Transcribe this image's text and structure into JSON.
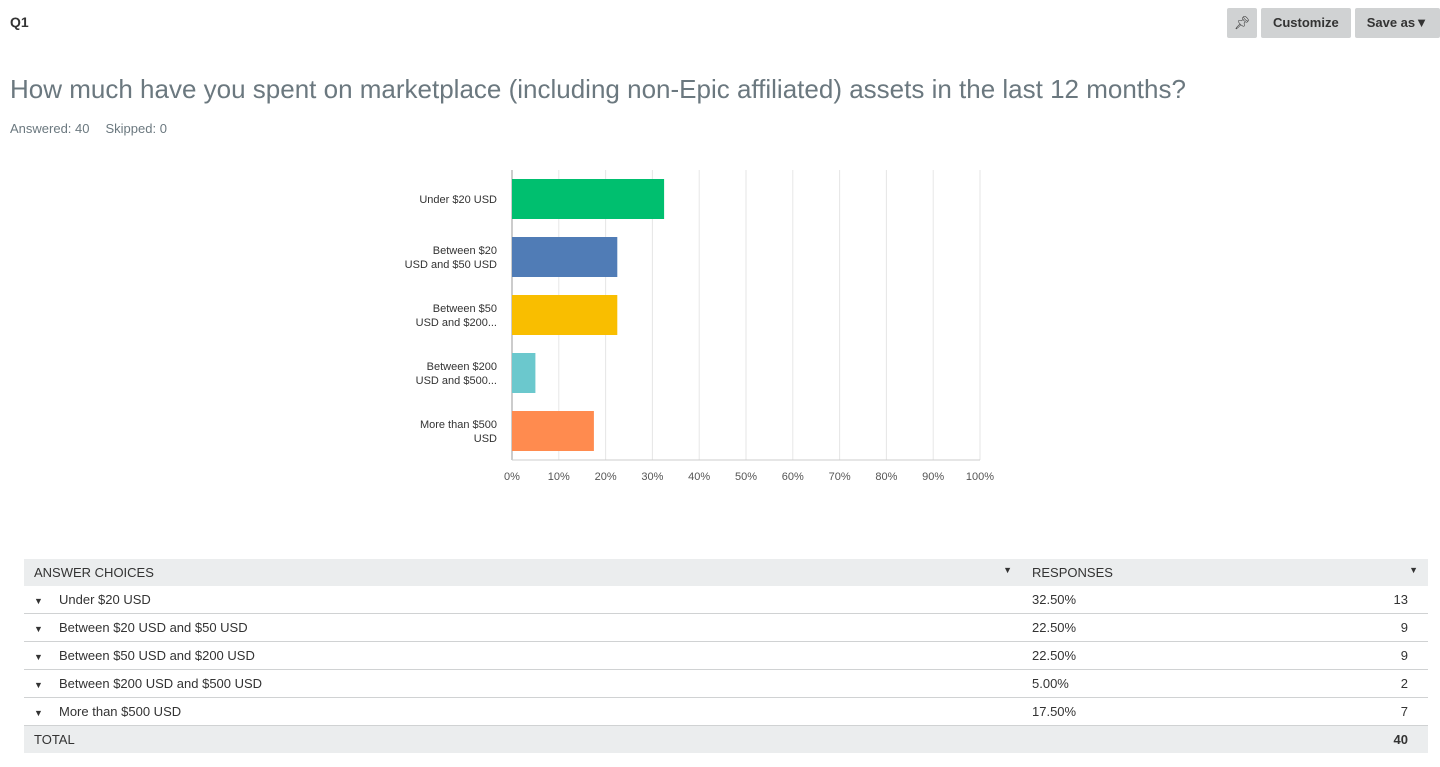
{
  "header": {
    "question_no": "Q1",
    "customize": "Customize",
    "save_as": "Save as▼"
  },
  "question": {
    "title": "How much have you spent on marketplace (including non-Epic affiliated) assets in the last 12 months?",
    "answered": "Answered: 40",
    "skipped": "Skipped: 0"
  },
  "chart_data": {
    "type": "bar",
    "orientation": "horizontal",
    "categories": [
      [
        "Under $20 USD"
      ],
      [
        "Between $20",
        "USD and $50 USD"
      ],
      [
        "Between $50",
        "USD and $200..."
      ],
      [
        "Between $200",
        "USD and $500..."
      ],
      [
        "More than $500",
        "USD"
      ]
    ],
    "values": [
      32.5,
      22.5,
      22.5,
      5.0,
      17.5
    ],
    "colors": [
      "#00bf6f",
      "#507cb6",
      "#f9be00",
      "#6bc8cd",
      "#ff8b4f"
    ],
    "xlim": [
      0,
      100
    ],
    "xticks": [
      "0%",
      "10%",
      "20%",
      "30%",
      "40%",
      "50%",
      "60%",
      "70%",
      "80%",
      "90%",
      "100%"
    ],
    "grid": true
  },
  "table": {
    "headers": [
      "ANSWER CHOICES",
      "RESPONSES"
    ],
    "rows": [
      {
        "choice": "Under $20 USD",
        "pct": "32.50%",
        "count": "13"
      },
      {
        "choice": "Between $20 USD and $50 USD",
        "pct": "22.50%",
        "count": "9"
      },
      {
        "choice": "Between $50 USD and $200 USD",
        "pct": "22.50%",
        "count": "9"
      },
      {
        "choice": "Between $200 USD and $500 USD",
        "pct": "5.00%",
        "count": "2"
      },
      {
        "choice": "More than $500 USD",
        "pct": "17.50%",
        "count": "7"
      }
    ],
    "total_label": "TOTAL",
    "total": "40"
  }
}
